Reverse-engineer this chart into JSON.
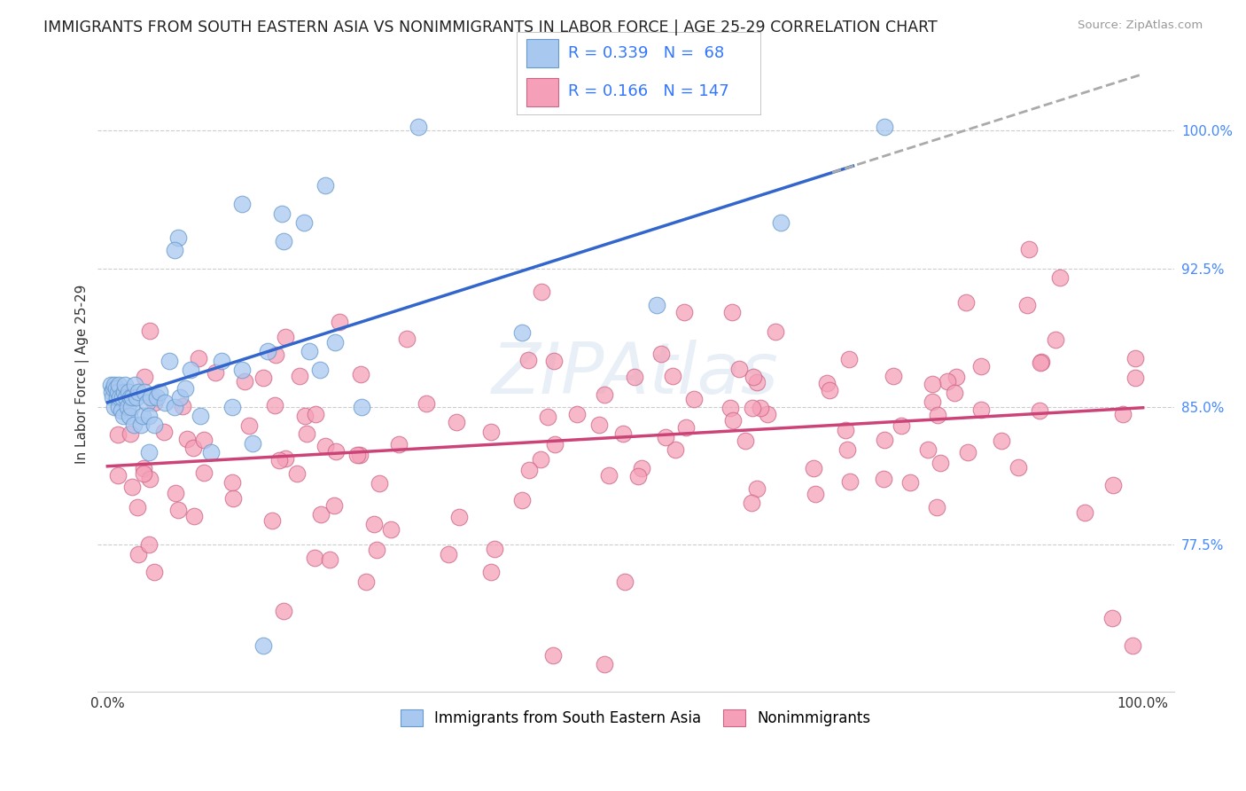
{
  "title": "IMMIGRANTS FROM SOUTH EASTERN ASIA VS NONIMMIGRANTS IN LABOR FORCE | AGE 25-29 CORRELATION CHART",
  "source": "Source: ZipAtlas.com",
  "ylabel": "In Labor Force | Age 25-29",
  "color_blue": "#A8C8F0",
  "color_blue_edge": "#6699CC",
  "color_pink": "#F5A0B8",
  "color_pink_edge": "#CC6688",
  "line_blue": "#3366CC",
  "line_pink": "#CC4477",
  "line_gray": "#AAAAAA",
  "ytick_color": "#4488FF"
}
